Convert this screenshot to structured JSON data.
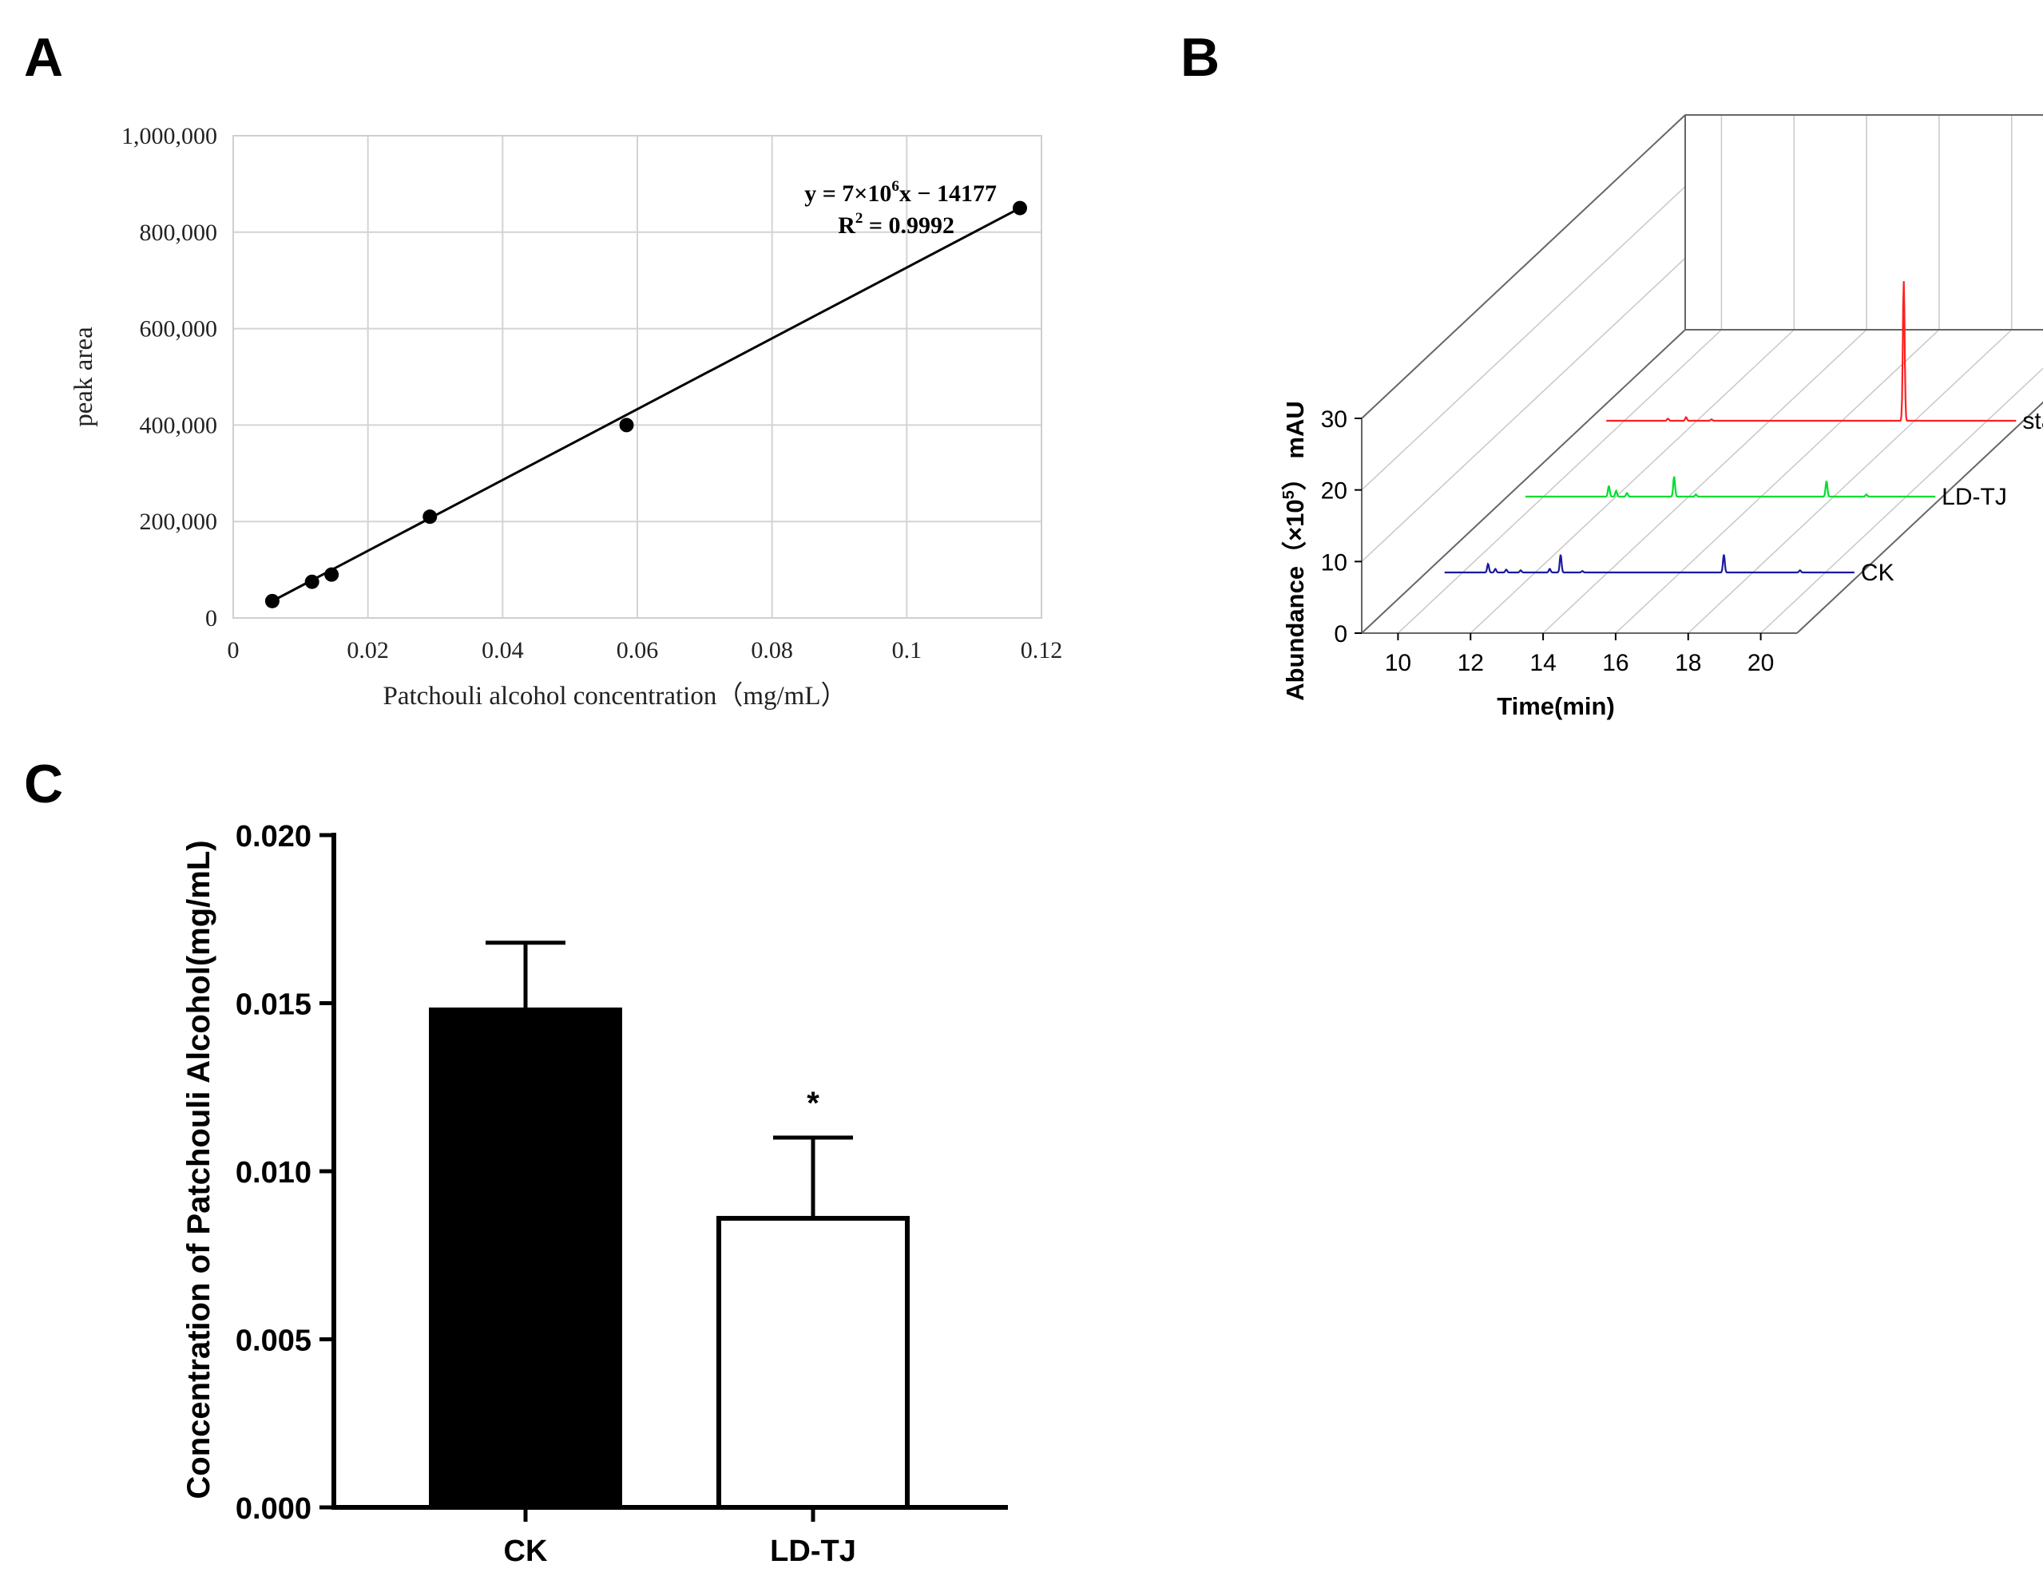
{
  "panel_labels": {
    "a": "A",
    "b": "B",
    "c": "C"
  },
  "chart_data": [
    {
      "panel": "A",
      "type": "scatter",
      "title": "",
      "xlabel": "Patchouli alcohol concentration（mg/mL）",
      "ylabel": "peak area",
      "xlim": [
        0,
        0.12
      ],
      "ylim": [
        0,
        1000000
      ],
      "grid": true,
      "x_ticks": [
        0,
        0.02,
        0.04,
        0.06,
        0.08,
        0.1,
        0.12
      ],
      "x_tick_labels": [
        "0",
        "0.02",
        "0.04",
        "0.06",
        "0.08",
        "0.1",
        "0.12"
      ],
      "y_ticks": [
        0,
        200000,
        400000,
        600000,
        800000,
        1000000
      ],
      "y_tick_labels": [
        "0",
        "200,000",
        "400,000",
        "600,000",
        "800,000",
        "1,000,000"
      ],
      "points": [
        {
          "x": 0.0058,
          "y": 35000
        },
        {
          "x": 0.0117,
          "y": 75000
        },
        {
          "x": 0.0146,
          "y": 90000
        },
        {
          "x": 0.0292,
          "y": 210000
        },
        {
          "x": 0.0584,
          "y": 400000
        },
        {
          "x": 0.1168,
          "y": 850000
        }
      ],
      "fit_line": {
        "x_start": 0.0058,
        "x_end": 0.1168,
        "y_start": 35000,
        "y_end": 850000
      },
      "equation": {
        "prefix": "y = 7×10",
        "exponent": "6",
        "suffix": "x − 14177"
      },
      "r_squared": {
        "prefix": "R",
        "exponent": "2",
        "suffix": " = 0.9992"
      }
    },
    {
      "panel": "B",
      "type": "line",
      "title": "",
      "xlabel": "Time(min)",
      "ylabel_main": "Abundance（×10",
      "ylabel_exponent": "5",
      "ylabel_unit": "） mAU",
      "xlim": [
        9,
        21
      ],
      "ylim": [
        0,
        30
      ],
      "x_ticks": [
        10,
        12,
        14,
        16,
        18,
        20
      ],
      "x_tick_labels": [
        "10",
        "12",
        "14",
        "16",
        "18",
        "20"
      ],
      "y_ticks": [
        0,
        10,
        20,
        30
      ],
      "y_tick_labels": [
        "0",
        "10",
        "20",
        "30"
      ],
      "series": [
        {
          "name": "standard",
          "color": "#ff2020",
          "baseline_start": 9.5,
          "baseline_end": 20.8,
          "peaks": [
            {
              "t": 11.2,
              "h": 0.3
            },
            {
              "t": 11.7,
              "h": 0.5
            },
            {
              "t": 12.4,
              "h": 0.2
            },
            {
              "t": 17.7,
              "h": 19.5
            }
          ]
        },
        {
          "name": "LD-TJ",
          "color": "#00dd30",
          "baseline_start": 9.5,
          "baseline_end": 20.8,
          "peaks": [
            {
              "t": 11.8,
              "h": 1.5
            },
            {
              "t": 12.0,
              "h": 0.8
            },
            {
              "t": 12.3,
              "h": 0.5
            },
            {
              "t": 13.6,
              "h": 2.8
            },
            {
              "t": 14.2,
              "h": 0.3
            },
            {
              "t": 17.8,
              "h": 2.2
            },
            {
              "t": 18.9,
              "h": 0.3
            }
          ]
        },
        {
          "name": "CK",
          "color": "#1a1aa0",
          "baseline_start": 9.5,
          "baseline_end": 20.8,
          "peaks": [
            {
              "t": 10.7,
              "h": 1.2
            },
            {
              "t": 10.9,
              "h": 0.5
            },
            {
              "t": 11.2,
              "h": 0.4
            },
            {
              "t": 11.6,
              "h": 0.3
            },
            {
              "t": 12.4,
              "h": 0.5
            },
            {
              "t": 12.7,
              "h": 2.5
            },
            {
              "t": 13.3,
              "h": 0.2
            },
            {
              "t": 17.2,
              "h": 2.5
            },
            {
              "t": 19.3,
              "h": 0.3
            }
          ]
        }
      ]
    },
    {
      "panel": "C",
      "type": "bar",
      "title": "",
      "xlabel": "",
      "ylabel": "Concentration of Patchouli Alcohol(mg/mL)",
      "ylim": [
        0,
        0.02
      ],
      "y_ticks": [
        0,
        0.005,
        0.01,
        0.015,
        0.02
      ],
      "y_tick_labels": [
        "0.000",
        "0.005",
        "0.010",
        "0.015",
        "0.020"
      ],
      "categories": [
        "CK",
        "LD-TJ"
      ],
      "values": [
        0.0148,
        0.0086
      ],
      "errors": [
        0.002,
        0.0024
      ],
      "fills": [
        "#000000",
        "#ffffff"
      ],
      "annotations": [
        "",
        "*"
      ]
    }
  ]
}
